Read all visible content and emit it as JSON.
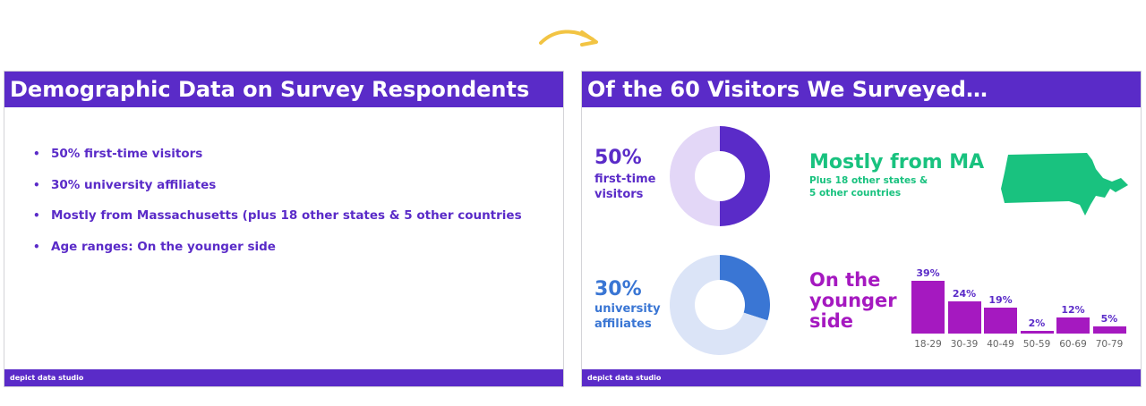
{
  "arrow": {
    "color": "#f2c443",
    "icon": "curved-arrow-icon"
  },
  "colors": {
    "purple": "#5a2bc8",
    "light_purple": "#e3d7f7",
    "blue": "#3a76d4",
    "light_blue": "#dbe4f7",
    "green": "#19c27f",
    "magenta": "#a519c0"
  },
  "left_slide": {
    "title": "Demographic Data on Survey Respondents",
    "bullets": [
      "50% first-time visitors",
      "30% university affiliates",
      "Mostly from Massachusetts (plus 18 other states & 5 other countries",
      "Age ranges: On the younger side"
    ],
    "footer": "depict data studio"
  },
  "right_slide": {
    "title": "Of the 60 Visitors We Surveyed…",
    "first_time": {
      "percent": "50%",
      "label_line1": "first-time",
      "label_line2": "visitors"
    },
    "university": {
      "percent": "30%",
      "label_line1": "university",
      "label_line2": "affiliates"
    },
    "origin": {
      "title": "Mostly from MA",
      "sub_line1": "Plus 18 other states &",
      "sub_line2": "5 other countries",
      "map_icon": "massachusetts-map-icon"
    },
    "age": {
      "title_line1": "On the",
      "title_line2": "younger",
      "title_line3": "side"
    },
    "footer": "depict data studio"
  },
  "chart_data": [
    {
      "type": "pie",
      "subtype": "donut",
      "categories": [
        "first-time visitors",
        "other"
      ],
      "values": [
        50,
        50
      ],
      "colors": [
        "#5a2bc8",
        "#e3d7f7"
      ]
    },
    {
      "type": "pie",
      "subtype": "donut",
      "categories": [
        "university affiliates",
        "other"
      ],
      "values": [
        30,
        70
      ],
      "colors": [
        "#3a76d4",
        "#dbe4f7"
      ]
    },
    {
      "type": "bar",
      "categories": [
        "18-29",
        "30-39",
        "40-49",
        "50-59",
        "60-69",
        "70-79"
      ],
      "values": [
        39,
        24,
        19,
        2,
        12,
        5
      ],
      "data_labels": [
        "39%",
        "24%",
        "19%",
        "2%",
        "12%",
        "5%"
      ],
      "ylim": [
        0,
        39
      ],
      "color": "#a519c0"
    }
  ]
}
